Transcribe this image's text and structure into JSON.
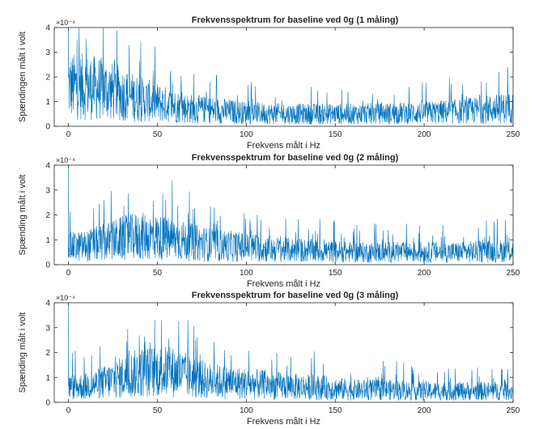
{
  "chart_data": [
    {
      "type": "line",
      "title": "Frekvensspektrum for baseline ved 0g (1 måling)",
      "xlabel": "Frekvens målt i Hz",
      "ylabel": "Spændingen målt i volt",
      "exponent_label": "×10⁻⁴",
      "xlim": [
        -8,
        250
      ],
      "ylim": [
        0,
        4
      ],
      "xticks": [
        0,
        50,
        100,
        150,
        200,
        250
      ],
      "yticks": [
        0,
        1,
        2,
        3,
        4
      ],
      "grid": false,
      "color": "#0072BD",
      "envelope": {
        "x": [
          0,
          10,
          20,
          30,
          40,
          50,
          60,
          70,
          80,
          100,
          120,
          140,
          160,
          180,
          200,
          220,
          240,
          250
        ],
        "y": [
          1.6,
          1.6,
          1.5,
          1.3,
          1.1,
          0.95,
          0.8,
          0.7,
          0.65,
          0.55,
          0.5,
          0.5,
          0.5,
          0.52,
          0.55,
          0.6,
          0.7,
          0.75
        ]
      },
      "spike_max": 4.0
    },
    {
      "type": "line",
      "title": "Frekvensspektrum for baseline ved 0g (2 måling)",
      "xlabel": "Frekvens målt i Hz",
      "ylabel": "Spænding målt i volt",
      "exponent_label": "×10⁻⁴",
      "xlim": [
        -8,
        250
      ],
      "ylim": [
        0,
        4
      ],
      "xticks": [
        0,
        50,
        100,
        150,
        200,
        250
      ],
      "yticks": [
        0,
        1,
        2,
        3,
        4
      ],
      "grid": false,
      "color": "#0072BD",
      "envelope": {
        "x": [
          0,
          10,
          20,
          30,
          40,
          50,
          60,
          70,
          80,
          100,
          120,
          140,
          160,
          180,
          200,
          220,
          240,
          250
        ],
        "y": [
          0.7,
          0.75,
          0.9,
          1.05,
          1.15,
          1.1,
          1.0,
          0.9,
          0.8,
          0.7,
          0.6,
          0.55,
          0.5,
          0.5,
          0.5,
          0.5,
          0.55,
          0.55
        ]
      },
      "spike_max": 3.5
    },
    {
      "type": "line",
      "title": "Frekvensspektrum for baseline ved 0g (3 måling)",
      "xlabel": "Frekvens målt i Hz",
      "ylabel": "Spænding målt i volt",
      "exponent_label": "×10⁻⁴",
      "xlim": [
        -8,
        250
      ],
      "ylim": [
        0,
        4
      ],
      "xticks": [
        0,
        50,
        100,
        150,
        200,
        250
      ],
      "yticks": [
        0,
        1,
        2,
        3,
        4
      ],
      "grid": false,
      "color": "#0072BD",
      "envelope": {
        "x": [
          0,
          10,
          20,
          30,
          40,
          50,
          60,
          70,
          80,
          100,
          120,
          140,
          160,
          180,
          200,
          220,
          240,
          250
        ],
        "y": [
          0.6,
          0.65,
          0.8,
          1.0,
          1.2,
          1.25,
          1.2,
          1.0,
          0.85,
          0.75,
          0.65,
          0.6,
          0.5,
          0.5,
          0.45,
          0.45,
          0.45,
          0.45
        ]
      },
      "spike_max": 3.3
    }
  ]
}
